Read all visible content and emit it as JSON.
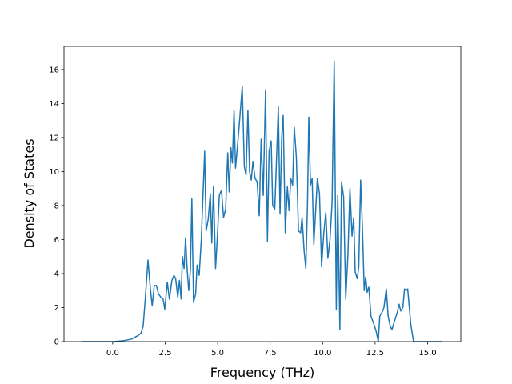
{
  "chart_data": {
    "type": "line",
    "x_label": "Frequency (THz)",
    "y_label": "Density of States",
    "color": "#1f77b4",
    "xlim": [
      -2.32,
      16.58
    ],
    "ylim": [
      0,
      17.36
    ],
    "xticks": [
      {
        "value": 0,
        "label": "0.0"
      },
      {
        "value": 2.5,
        "label": "2.5"
      },
      {
        "value": 5,
        "label": "5.0"
      },
      {
        "value": 7.5,
        "label": "7.5"
      },
      {
        "value": 10,
        "label": "10.0"
      },
      {
        "value": 12.5,
        "label": "12.5"
      },
      {
        "value": 15,
        "label": "15.0"
      }
    ],
    "yticks": [
      0,
      2,
      4,
      6,
      8,
      10,
      12,
      14,
      16
    ],
    "x": [
      -1.45,
      0.0,
      0.5,
      0.9,
      1.2,
      1.35,
      1.45,
      1.55,
      1.68,
      1.78,
      1.88,
      1.98,
      2.08,
      2.18,
      2.3,
      2.4,
      2.48,
      2.6,
      2.7,
      2.82,
      2.92,
      3.0,
      3.1,
      3.18,
      3.26,
      3.32,
      3.4,
      3.47,
      3.55,
      3.62,
      3.7,
      3.77,
      3.85,
      3.95,
      4.02,
      4.12,
      4.22,
      4.38,
      4.45,
      4.55,
      4.65,
      4.72,
      4.8,
      4.9,
      5.0,
      5.08,
      5.18,
      5.28,
      5.38,
      5.48,
      5.55,
      5.63,
      5.7,
      5.78,
      5.85,
      6.0,
      6.17,
      6.27,
      6.35,
      6.44,
      6.52,
      6.6,
      6.68,
      6.78,
      6.88,
      6.98,
      7.07,
      7.17,
      7.28,
      7.37,
      7.45,
      7.55,
      7.62,
      7.72,
      7.89,
      7.97,
      8.05,
      8.12,
      8.22,
      8.32,
      8.4,
      8.48,
      8.57,
      8.65,
      8.75,
      8.85,
      8.95,
      9.02,
      9.12,
      9.2,
      9.28,
      9.34,
      9.42,
      9.5,
      9.58,
      9.68,
      9.75,
      9.85,
      9.95,
      10.05,
      10.15,
      10.25,
      10.35,
      10.45,
      10.55,
      10.65,
      10.72,
      10.82,
      10.9,
      11.0,
      11.1,
      11.2,
      11.3,
      11.4,
      11.48,
      11.55,
      11.65,
      11.72,
      11.81,
      11.9,
      11.98,
      12.05,
      12.12,
      12.2,
      12.3,
      12.45,
      12.55,
      12.65,
      12.72,
      12.82,
      12.92,
      13.03,
      13.12,
      13.22,
      13.3,
      13.42,
      13.55,
      13.64,
      13.72,
      13.82,
      13.9,
      13.98,
      14.05,
      14.2,
      14.33,
      15.7
    ],
    "values": [
      0,
      0,
      0.05,
      0.15,
      0.35,
      0.5,
      0.9,
      2.5,
      4.8,
      3.3,
      2.1,
      3.3,
      3.3,
      2.8,
      2.6,
      2.5,
      1.9,
      3.5,
      2.5,
      3.6,
      3.9,
      3.7,
      2.6,
      3.6,
      2.5,
      5.0,
      4.3,
      6.1,
      4.2,
      3.0,
      4.2,
      8.4,
      2.3,
      2.8,
      4.5,
      3.9,
      6.0,
      11.2,
      6.5,
      7.2,
      8.7,
      5.8,
      9.1,
      4.3,
      6.5,
      8.6,
      8.9,
      7.3,
      7.8,
      11.1,
      8.8,
      11.4,
      10.5,
      13.6,
      10.2,
      12.3,
      15.0,
      10.3,
      9.8,
      13.6,
      10.0,
      9.5,
      10.6,
      9.6,
      9.4,
      7.4,
      11.9,
      8.6,
      14.8,
      5.9,
      11.2,
      11.8,
      8.0,
      7.8,
      13.8,
      7.5,
      12.0,
      13.3,
      6.4,
      9.1,
      7.7,
      9.6,
      9.2,
      12.6,
      10.8,
      6.5,
      6.4,
      7.3,
      5.3,
      4.3,
      8.2,
      13.2,
      9.2,
      9.6,
      5.7,
      8.0,
      9.6,
      8.7,
      4.4,
      6.3,
      7.6,
      4.9,
      6.0,
      8.2,
      16.5,
      1.9,
      8.6,
      0.7,
      9.4,
      8.5,
      2.5,
      5.0,
      9.0,
      6.2,
      7.3,
      4.1,
      3.7,
      4.4,
      9.5,
      6.5,
      3.0,
      3.8,
      2.9,
      3.2,
      1.5,
      1.0,
      0.6,
      0,
      1.5,
      1.7,
      2.0,
      3.1,
      1.5,
      0.9,
      0.7,
      1.2,
      1.7,
      2.2,
      1.8,
      2.0,
      3.1,
      3.0,
      3.1,
      1.0,
      0,
      0
    ]
  }
}
